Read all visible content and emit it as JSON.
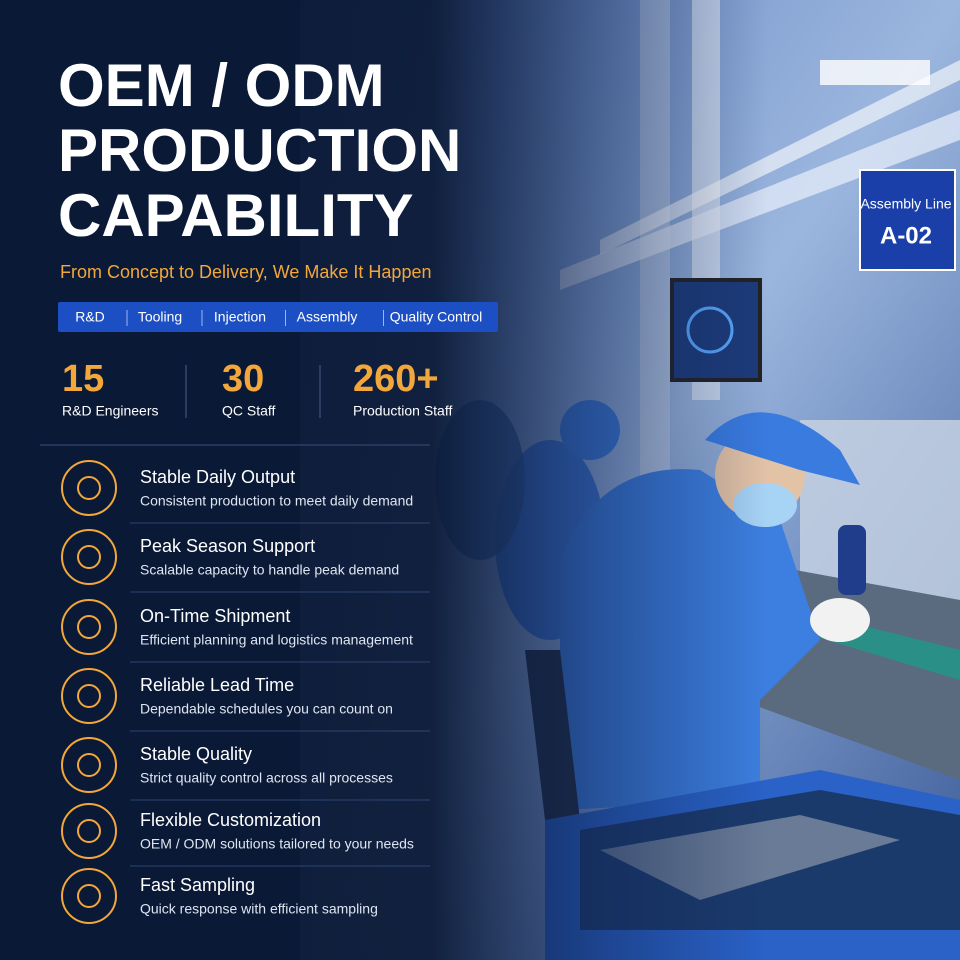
{
  "header": {
    "title_lines": [
      "OEM / ODM",
      "PRODUCTION",
      "CAPABILITY"
    ],
    "subtitle": "From Concept to Delivery, We Make It Happen"
  },
  "process_tags": [
    "R&D",
    "Tooling",
    "Injection",
    "Assembly",
    "Quality Control"
  ],
  "stats": [
    {
      "value": "15",
      "label": "R&D Engineers"
    },
    {
      "value": "30",
      "label": "QC Staff"
    },
    {
      "value": "260+",
      "label": "Production Staff"
    }
  ],
  "features": [
    {
      "title": "Stable Daily Output",
      "description": "Consistent production to meet daily demand"
    },
    {
      "title": "Peak Season Support",
      "description": "Scalable capacity to handle peak demand"
    },
    {
      "title": "On-Time Shipment",
      "description": "Efficient planning and logistics management"
    },
    {
      "title": "Reliable Lead Time",
      "description": "Dependable schedules you can count on"
    },
    {
      "title": "Stable Quality",
      "description": "Strict quality control across all processes"
    },
    {
      "title": "Flexible Customization",
      "description": "OEM / ODM solutions tailored to your needs"
    },
    {
      "title": "Fast Sampling",
      "description": "Quick response with efficient sampling"
    }
  ],
  "sign": {
    "line1": "Assembly Line",
    "line2": "A-02"
  }
}
